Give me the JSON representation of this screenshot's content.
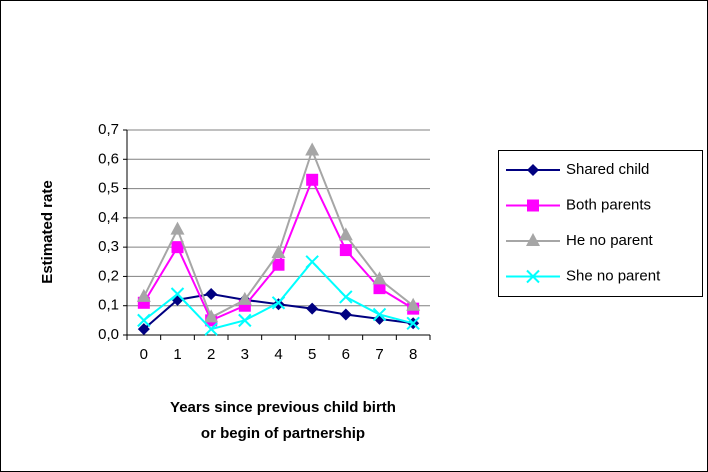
{
  "chart_data": {
    "type": "line",
    "ylabel": "Estimated rate",
    "xlabel": [
      "Years since previous child birth",
      "or begin of partnership"
    ],
    "categories": [
      "0",
      "1",
      "2",
      "3",
      "4",
      "5",
      "6",
      "7",
      "8"
    ],
    "series": [
      {
        "name": "Shared child",
        "color": "#000080",
        "marker": "diamond",
        "values": [
          0.02,
          0.12,
          0.14,
          0.12,
          0.105,
          0.09,
          0.07,
          0.055,
          0.04
        ]
      },
      {
        "name": "Both parents",
        "color": "#ff00ff",
        "marker": "square",
        "values": [
          0.11,
          0.3,
          0.05,
          0.1,
          0.24,
          0.53,
          0.29,
          0.16,
          0.09
        ]
      },
      {
        "name": "He no parent",
        "color": "#a6a6a6",
        "marker": "triangle",
        "values": [
          0.13,
          0.36,
          0.06,
          0.12,
          0.28,
          0.63,
          0.34,
          0.19,
          0.1
        ]
      },
      {
        "name": "She no parent",
        "color": "#00ffff",
        "marker": "x",
        "values": [
          0.05,
          0.14,
          0.02,
          0.05,
          0.11,
          0.25,
          0.13,
          0.07,
          0.04
        ]
      }
    ],
    "ylim": [
      0,
      0.7
    ],
    "yticks": [
      {
        "value": 0,
        "label": "0,0"
      },
      {
        "value": 0.1,
        "label": "0,1"
      },
      {
        "value": 0.2,
        "label": "0,2"
      },
      {
        "value": 0.3,
        "label": "0,3"
      },
      {
        "value": 0.4,
        "label": "0,4"
      },
      {
        "value": 0.5,
        "label": "0,5"
      },
      {
        "value": 0.6,
        "label": "0,6"
      },
      {
        "value": 0.7,
        "label": "0,7"
      }
    ],
    "grid": true
  }
}
